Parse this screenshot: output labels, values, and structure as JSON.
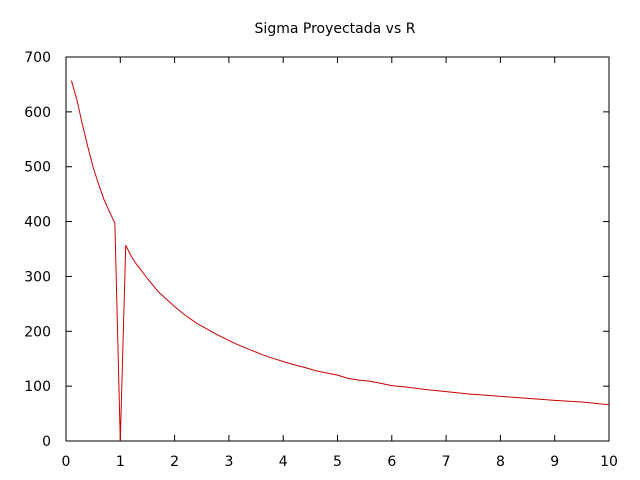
{
  "chart_data": {
    "type": "line",
    "title": "Sigma Proyectada vs R",
    "xlabel": "",
    "ylabel": "",
    "xlim": [
      0,
      10
    ],
    "ylim": [
      0,
      700
    ],
    "xticks": [
      0,
      1,
      2,
      3,
      4,
      5,
      6,
      7,
      8,
      9,
      10
    ],
    "yticks": [
      0,
      100,
      200,
      300,
      400,
      500,
      600,
      700
    ],
    "grid": false,
    "legend": "none",
    "series_color": "#cc0000",
    "series": [
      {
        "x": [
          0.1,
          0.2,
          0.3,
          0.4,
          0.5,
          0.6,
          0.7,
          0.8,
          0.9,
          1.0,
          1.1,
          1.2,
          1.3,
          1.4,
          1.5,
          1.6,
          1.7,
          1.8,
          1.9,
          2.0,
          2.2,
          2.4,
          2.6,
          2.8,
          3.0,
          3.2,
          3.4,
          3.6,
          3.8,
          4.0,
          4.2,
          4.4,
          4.6,
          4.8,
          5.0,
          5.2,
          5.4,
          5.6,
          5.8,
          6.0,
          6.3,
          6.6,
          7.0,
          7.4,
          7.8,
          8.2,
          8.6,
          9.0,
          9.5,
          10.0
        ],
        "y": [
          657,
          622,
          578,
          537,
          499,
          468,
          440,
          418,
          397,
          0,
          357,
          337,
          322,
          309,
          296,
          284,
          272,
          263,
          254,
          245,
          229,
          215,
          204,
          193,
          183,
          174,
          166,
          158,
          151,
          145,
          139,
          134,
          128,
          124,
          120,
          114,
          111,
          109,
          105,
          101,
          98,
          94,
          90,
          86,
          83,
          80,
          77,
          74,
          71,
          66
        ]
      }
    ]
  }
}
